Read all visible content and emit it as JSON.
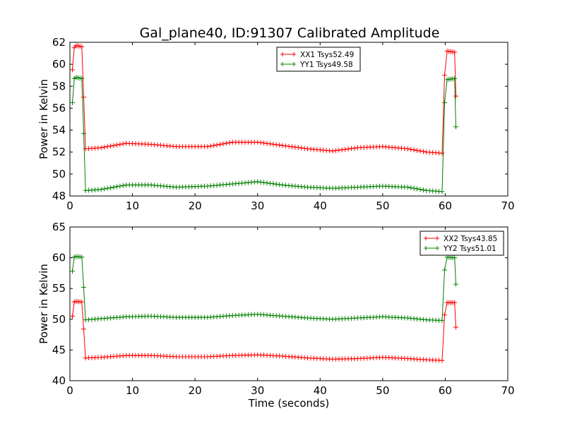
{
  "title": "Gal_plane40, ID:91307 Calibrated Amplitude",
  "chart_data": [
    {
      "type": "line",
      "xlabel": "",
      "ylabel": "Power in Kelvin",
      "xlim": [
        0,
        70
      ],
      "ylim": [
        48,
        62
      ],
      "xticks": [
        "0",
        "10",
        "20",
        "30",
        "40",
        "50",
        "60",
        "70"
      ],
      "yticks": [
        "48",
        "50",
        "52",
        "54",
        "56",
        "58",
        "60",
        "62"
      ],
      "legend_position": "upper-center",
      "series": [
        {
          "name": "XX1 Tsys52.49",
          "color": "#ff0000",
          "keypoints": [
            [
              0.4,
              59.5
            ],
            [
              0.7,
              61.5
            ],
            [
              1.0,
              61.7
            ],
            [
              1.9,
              61.6
            ],
            [
              2.2,
              57.0
            ],
            [
              2.5,
              52.3
            ],
            [
              5,
              52.4
            ],
            [
              9,
              52.8
            ],
            [
              13,
              52.7
            ],
            [
              17,
              52.5
            ],
            [
              22,
              52.5
            ],
            [
              26,
              52.9
            ],
            [
              30,
              52.9
            ],
            [
              34,
              52.6
            ],
            [
              38,
              52.3
            ],
            [
              42,
              52.1
            ],
            [
              46,
              52.4
            ],
            [
              50,
              52.5
            ],
            [
              54,
              52.3
            ],
            [
              57,
              52.0
            ],
            [
              59.5,
              51.9
            ],
            [
              59.9,
              59.0
            ],
            [
              60.3,
              61.2
            ],
            [
              61.5,
              61.1
            ],
            [
              61.7,
              57.1
            ]
          ]
        },
        {
          "name": "YY1 Tsys49.58",
          "color": "#008000",
          "keypoints": [
            [
              0.4,
              56.5
            ],
            [
              0.7,
              58.7
            ],
            [
              1.0,
              58.8
            ],
            [
              1.9,
              58.7
            ],
            [
              2.2,
              53.7
            ],
            [
              2.5,
              48.5
            ],
            [
              5,
              48.6
            ],
            [
              9,
              49.0
            ],
            [
              13,
              49.0
            ],
            [
              17,
              48.8
            ],
            [
              22,
              48.9
            ],
            [
              26,
              49.1
            ],
            [
              30,
              49.3
            ],
            [
              34,
              49.0
            ],
            [
              38,
              48.8
            ],
            [
              42,
              48.7
            ],
            [
              46,
              48.8
            ],
            [
              50,
              48.9
            ],
            [
              54,
              48.8
            ],
            [
              57,
              48.5
            ],
            [
              59.5,
              48.4
            ],
            [
              59.9,
              56.5
            ],
            [
              60.3,
              58.6
            ],
            [
              61.5,
              58.7
            ],
            [
              61.7,
              54.3
            ]
          ]
        }
      ]
    },
    {
      "type": "line",
      "xlabel": "Time (seconds)",
      "ylabel": "Power in Kelvin",
      "xlim": [
        0,
        70
      ],
      "ylim": [
        40,
        65
      ],
      "xticks": [
        "0",
        "10",
        "20",
        "30",
        "40",
        "50",
        "60",
        "70"
      ],
      "yticks": [
        "40",
        "45",
        "50",
        "55",
        "60",
        "65"
      ],
      "legend_position": "upper-right",
      "series": [
        {
          "name": "XX2 Tsys43.85",
          "color": "#ff0000",
          "keypoints": [
            [
              0.4,
              50.5
            ],
            [
              0.7,
              52.8
            ],
            [
              1.0,
              52.9
            ],
            [
              1.9,
              52.8
            ],
            [
              2.2,
              48.4
            ],
            [
              2.5,
              43.7
            ],
            [
              5,
              43.8
            ],
            [
              9,
              44.1
            ],
            [
              13,
              44.1
            ],
            [
              17,
              43.9
            ],
            [
              22,
              43.9
            ],
            [
              26,
              44.1
            ],
            [
              30,
              44.2
            ],
            [
              34,
              44.0
            ],
            [
              38,
              43.7
            ],
            [
              42,
              43.5
            ],
            [
              46,
              43.6
            ],
            [
              50,
              43.8
            ],
            [
              54,
              43.6
            ],
            [
              57,
              43.4
            ],
            [
              59.5,
              43.3
            ],
            [
              59.9,
              50.7
            ],
            [
              60.3,
              52.7
            ],
            [
              61.5,
              52.7
            ],
            [
              61.7,
              48.7
            ]
          ]
        },
        {
          "name": "YY2 Tsys51.01",
          "color": "#008000",
          "keypoints": [
            [
              0.4,
              57.8
            ],
            [
              0.7,
              60.1
            ],
            [
              1.0,
              60.2
            ],
            [
              1.9,
              60.1
            ],
            [
              2.2,
              55.2
            ],
            [
              2.5,
              49.9
            ],
            [
              5,
              50.1
            ],
            [
              9,
              50.4
            ],
            [
              13,
              50.5
            ],
            [
              17,
              50.3
            ],
            [
              22,
              50.3
            ],
            [
              26,
              50.6
            ],
            [
              30,
              50.8
            ],
            [
              34,
              50.5
            ],
            [
              38,
              50.2
            ],
            [
              42,
              50.0
            ],
            [
              46,
              50.2
            ],
            [
              50,
              50.4
            ],
            [
              54,
              50.2
            ],
            [
              57,
              49.9
            ],
            [
              59.5,
              49.8
            ],
            [
              59.9,
              58.0
            ],
            [
              60.3,
              60.1
            ],
            [
              61.5,
              60.0
            ],
            [
              61.7,
              55.7
            ]
          ]
        }
      ]
    }
  ]
}
